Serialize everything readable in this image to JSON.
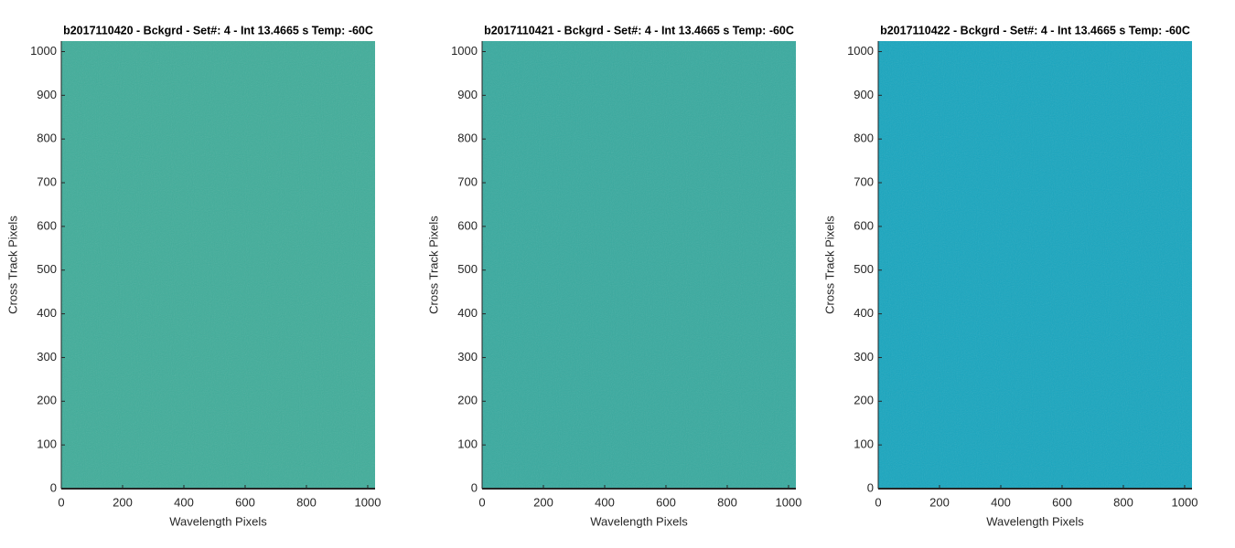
{
  "chart_data": [
    {
      "type": "image",
      "title": "b2017110420 - Bckgrd - Set#: 4 - Int 13.4665 s Temp: -60C",
      "xlabel": "Wavelength Pixels",
      "ylabel": "Cross Track Pixels",
      "xlim": [
        0,
        1024
      ],
      "ylim": [
        0,
        1024
      ],
      "xticks": [
        0,
        200,
        400,
        600,
        800,
        1000
      ],
      "yticks": [
        0,
        100,
        200,
        300,
        400,
        500,
        600,
        700,
        800,
        900,
        1000
      ],
      "color": "#40ad9a"
    },
    {
      "type": "image",
      "title": "b2017110421 - Bckgrd - Set#: 4 - Int 13.4665 s Temp: -60C",
      "xlabel": "Wavelength Pixels",
      "ylabel": "Cross Track Pixels",
      "xlim": [
        0,
        1024
      ],
      "ylim": [
        0,
        1024
      ],
      "xticks": [
        0,
        200,
        400,
        600,
        800,
        1000
      ],
      "yticks": [
        0,
        100,
        200,
        300,
        400,
        500,
        600,
        700,
        800,
        900,
        1000
      ],
      "color": "#38aa9f"
    },
    {
      "type": "image",
      "title": "b2017110422 - Bckgrd - Set#: 4 - Int 13.4665 s Temp: -60C",
      "xlabel": "Wavelength Pixels",
      "ylabel": "Cross Track Pixels",
      "xlim": [
        0,
        1024
      ],
      "ylim": [
        0,
        1024
      ],
      "xticks": [
        0,
        200,
        400,
        600,
        800,
        1000
      ],
      "yticks": [
        0,
        100,
        200,
        300,
        400,
        500,
        600,
        700,
        800,
        900,
        1000
      ],
      "color": "#18a6bf"
    }
  ]
}
